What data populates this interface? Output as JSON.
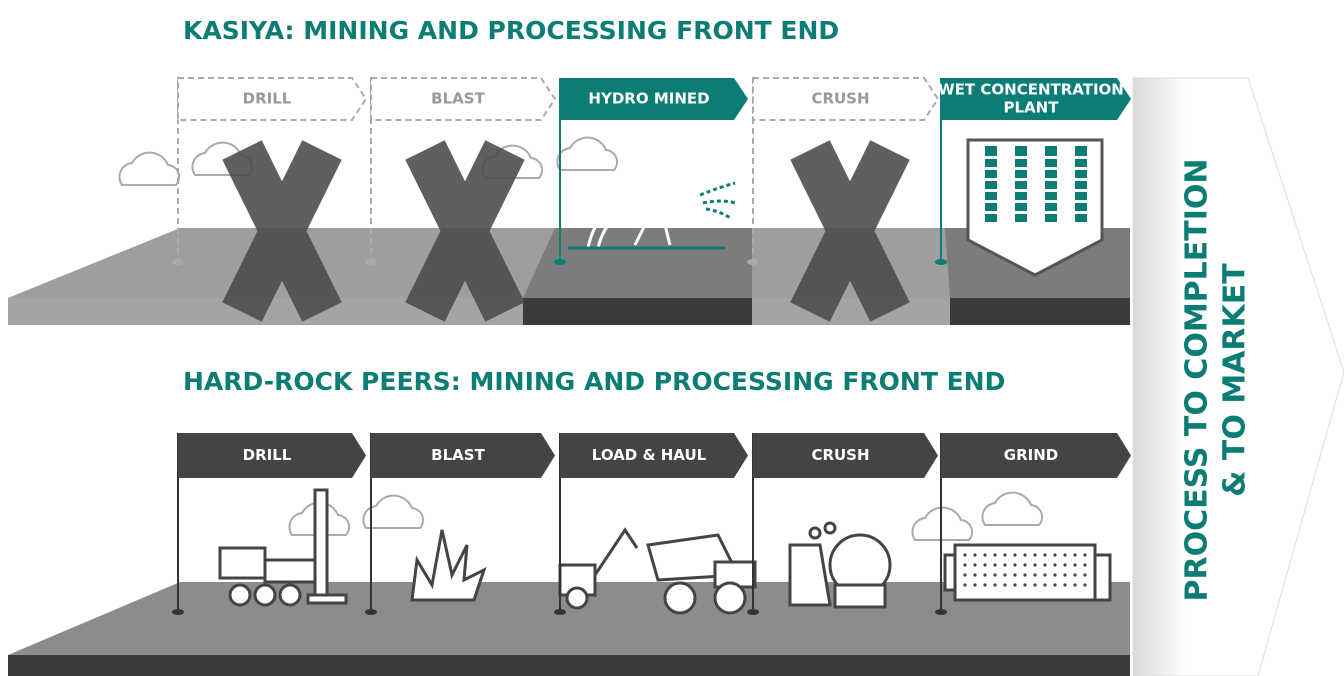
{
  "sections": [
    {
      "title": "KASIYA: MINING AND PROCESSING FRONT END",
      "steps": [
        {
          "lines": [
            "DRILL"
          ]
        },
        {
          "lines": [
            "BLAST"
          ]
        },
        {
          "lines": [
            "HYDRO MINED"
          ]
        },
        {
          "lines": [
            "CRUSH"
          ]
        },
        {
          "lines": [
            "WET CONCENTRATION",
            "PLANT"
          ]
        }
      ]
    },
    {
      "title": "HARD-ROCK PEERS: MINING AND PROCESSING FRONT END",
      "steps": [
        {
          "lines": [
            "DRILL"
          ]
        },
        {
          "lines": [
            "BLAST"
          ]
        },
        {
          "lines": [
            "LOAD & HAUL"
          ]
        },
        {
          "lines": [
            "CRUSH"
          ]
        },
        {
          "lines": [
            "GRIND"
          ]
        }
      ]
    }
  ],
  "arrow": {
    "lines": [
      "PROCESS TO COMPLETION",
      "& TO MARKET"
    ]
  }
}
